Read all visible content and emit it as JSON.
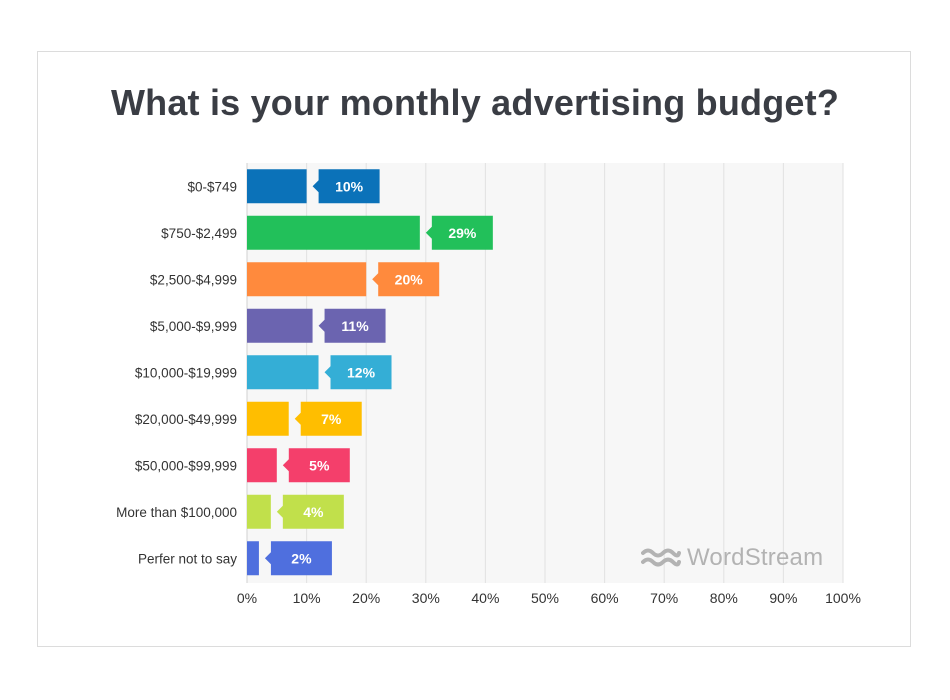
{
  "chart_data": {
    "type": "bar",
    "orientation": "horizontal",
    "title": "What is your monthly advertising budget?",
    "categories": [
      "$0-$749",
      "$750-$2,499",
      "$2,500-$4,999",
      "$5,000-$9,999",
      "$10,000-$19,999",
      "$20,000-$49,999",
      "$50,000-$99,999",
      "More than $100,000",
      "Perfer not to say"
    ],
    "values": [
      10,
      29,
      20,
      11,
      12,
      7,
      5,
      4,
      2
    ],
    "data_labels": [
      "10%",
      "29%",
      "20%",
      "11%",
      "12%",
      "7%",
      "5%",
      "4%",
      "2%"
    ],
    "colors": [
      "#0b72b9",
      "#22c05a",
      "#ff8a3d",
      "#6b64b0",
      "#34aed6",
      "#ffbe00",
      "#f43f6b",
      "#c1e04b",
      "#4f6fde"
    ],
    "xlim": [
      0,
      100
    ],
    "x_ticks": [
      0,
      10,
      20,
      30,
      40,
      50,
      60,
      70,
      80,
      90,
      100
    ],
    "x_tick_labels": [
      "0%",
      "10%",
      "20%",
      "30%",
      "40%",
      "50%",
      "60%",
      "70%",
      "80%",
      "90%",
      "100%"
    ],
    "grid": "vertical",
    "plot_background": "#f7f7f7"
  },
  "logo": {
    "text": "WordStream",
    "icon": "wordstream-waves-icon",
    "color": "#b3b3b3"
  }
}
